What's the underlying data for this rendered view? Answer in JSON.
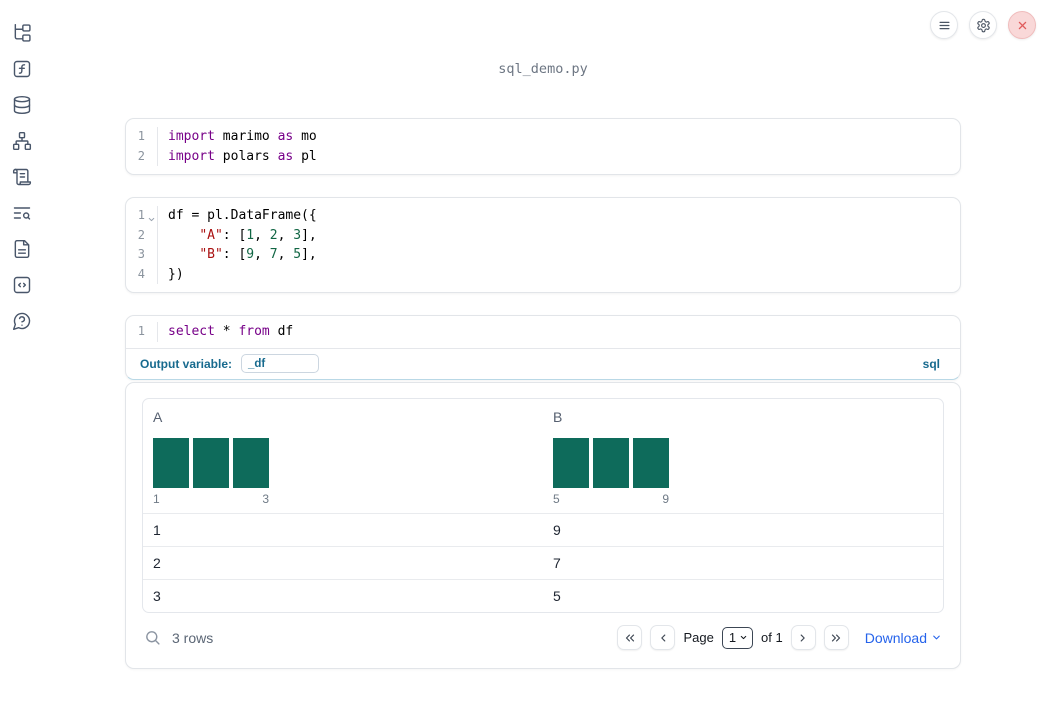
{
  "header": {
    "filename": "sql_demo.py"
  },
  "toolbar": {
    "buttons": [
      {
        "name": "notebook-menu",
        "icon": "menu-icon"
      },
      {
        "name": "settings",
        "icon": "gear-icon"
      },
      {
        "name": "shutdown",
        "icon": "close-icon"
      }
    ]
  },
  "sidebar": {
    "items": [
      {
        "name": "file-explorer",
        "icon": "file-tree-icon"
      },
      {
        "name": "variables",
        "icon": "function-icon"
      },
      {
        "name": "data-sources",
        "icon": "database-icon"
      },
      {
        "name": "dependencies",
        "icon": "dependency-graph-icon"
      },
      {
        "name": "logs",
        "icon": "scroll-icon"
      },
      {
        "name": "outline",
        "icon": "list-search-icon"
      },
      {
        "name": "documentation",
        "icon": "document-icon"
      },
      {
        "name": "snippets",
        "icon": "snippets-icon"
      },
      {
        "name": "help",
        "icon": "help-icon"
      }
    ]
  },
  "cells": [
    {
      "lines": [
        {
          "number": "1",
          "tokens": [
            [
              "import",
              "kw"
            ],
            [
              " marimo ",
              "pl"
            ],
            [
              "as",
              "kw"
            ],
            [
              " mo",
              "pl"
            ]
          ]
        },
        {
          "number": "2",
          "tokens": [
            [
              "import",
              "kw"
            ],
            [
              " polars ",
              "pl"
            ],
            [
              "as",
              "kw"
            ],
            [
              " pl",
              "pl"
            ]
          ]
        }
      ]
    },
    {
      "lines": [
        {
          "number": "1",
          "fold": true,
          "tokens": [
            [
              "df = pl.DataFrame({",
              "pl"
            ]
          ]
        },
        {
          "number": "2",
          "tokens": [
            [
              "    ",
              "pl"
            ],
            [
              "\"A\"",
              "str"
            ],
            [
              ": [",
              "pl"
            ],
            [
              "1",
              "num"
            ],
            [
              ", ",
              "pl"
            ],
            [
              "2",
              "num"
            ],
            [
              ", ",
              "pl"
            ],
            [
              "3",
              "num"
            ],
            [
              "],",
              "pl"
            ]
          ]
        },
        {
          "number": "3",
          "tokens": [
            [
              "    ",
              "pl"
            ],
            [
              "\"B\"",
              "str"
            ],
            [
              ": [",
              "pl"
            ],
            [
              "9",
              "num"
            ],
            [
              ", ",
              "pl"
            ],
            [
              "7",
              "num"
            ],
            [
              ", ",
              "pl"
            ],
            [
              "5",
              "num"
            ],
            [
              "],",
              "pl"
            ]
          ]
        },
        {
          "number": "4",
          "tokens": [
            [
              "})",
              "pl"
            ]
          ]
        }
      ]
    },
    {
      "lines": [
        {
          "number": "1",
          "tokens": [
            [
              "select",
              "kw"
            ],
            [
              " * ",
              "pl"
            ],
            [
              "from",
              "kw"
            ],
            [
              " df",
              "pl"
            ]
          ]
        }
      ]
    }
  ],
  "sql_cell": {
    "output_variable_label": "Output variable:",
    "output_variable_value": "_df",
    "language": "sql"
  },
  "table": {
    "columns": [
      {
        "name": "A",
        "histogram": {
          "bars": [
            1,
            1,
            1
          ],
          "min_label": "1",
          "max_label": "3"
        }
      },
      {
        "name": "B",
        "histogram": {
          "bars": [
            1,
            1,
            1
          ],
          "min_label": "5",
          "max_label": "9"
        }
      }
    ],
    "rows": [
      [
        "1",
        "9"
      ],
      [
        "2",
        "7"
      ],
      [
        "3",
        "5"
      ]
    ],
    "footer": {
      "row_count": "3 rows",
      "page_label": "Page",
      "page_value": "1",
      "page_of": "of 1",
      "download_label": "Download"
    }
  },
  "colors": {
    "kw": "#770088",
    "str": "#aa1111",
    "num": "#116644",
    "hist": "#0e6b5b",
    "accent": "#176a8e",
    "link": "#2563eb"
  }
}
